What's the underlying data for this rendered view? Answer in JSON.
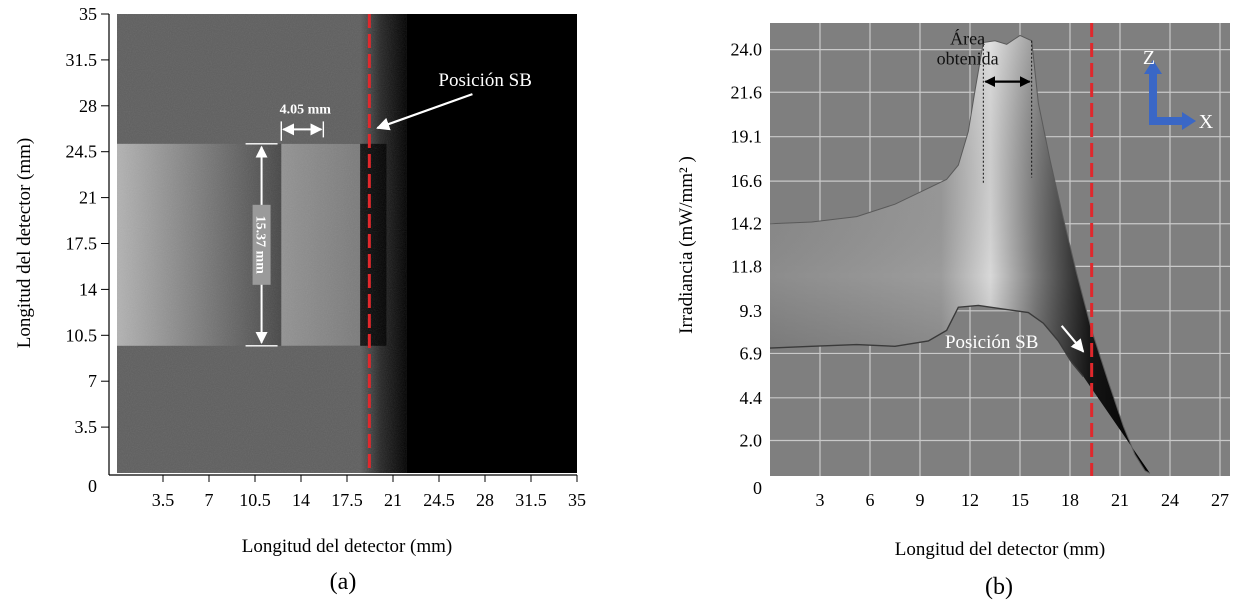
{
  "chart_data": [
    {
      "type": "heatmap",
      "panel_label": "(a)",
      "xlabel": "Longitud del detector (mm)",
      "ylabel": "Longitud del detector (mm)",
      "xlim": [
        0,
        35
      ],
      "ylim": [
        0,
        35
      ],
      "x_ticks": [
        "3.5",
        "7",
        "10.5",
        "14",
        "17.5",
        "21",
        "24.5",
        "28",
        "31.5",
        "35"
      ],
      "y_ticks": [
        "3.5",
        "7",
        "10.5",
        "14",
        "17.5",
        "21",
        "24.5",
        "28",
        "31.5",
        "35"
      ],
      "origin_label": "0",
      "bright_region": {
        "x_from": 0,
        "x_to": 20.5,
        "y_from": 9.7,
        "y_to": 25.1
      },
      "brightest_region": {
        "x_from": 12.5,
        "x_to": 18.5,
        "y_from": 9.7,
        "y_to": 25.1
      },
      "dark_region_from_x": 22,
      "sb_line_x": 19.2,
      "annotations": [
        {
          "text": "4.05 mm",
          "x_from": 12.5,
          "x_to": 15.7,
          "y": 26.2
        },
        {
          "text": "15.37 mm",
          "x": 11.0,
          "y_from": 9.7,
          "y_to": 25.1
        },
        {
          "text": "Posición SB",
          "x": 24.0,
          "y": 29.5
        }
      ]
    },
    {
      "type": "area",
      "panel_label": "(b)",
      "xlabel": "Longitud del detector (mm)",
      "ylabel": "Irradiancia (mW/mm² )",
      "xlim": [
        0,
        27.6
      ],
      "ylim": [
        0,
        25.5
      ],
      "x_ticks": [
        "3",
        "6",
        "9",
        "12",
        "15",
        "18",
        "21",
        "24",
        "27"
      ],
      "y_ticks": [
        "2.0",
        "4.4",
        "6.9",
        "9.3",
        "11.8",
        "14.2",
        "16.6",
        "19.1",
        "21.6",
        "24.0"
      ],
      "origin_label": "0",
      "grid": true,
      "sb_line_x": 19.3,
      "upper_profile": {
        "x": [
          0,
          2.5,
          5.2,
          7.5,
          9.5,
          10.6,
          11.3,
          11.9,
          12.3,
          12.8,
          13.5,
          14.2,
          15,
          15.7,
          16.1,
          16.8,
          17.6,
          18.4,
          19.3,
          20.3,
          21.2,
          21.9,
          22.5,
          22.8
        ],
        "y": [
          14.2,
          14.3,
          14.6,
          15.3,
          16.2,
          16.7,
          17.5,
          19.4,
          21.7,
          24.4,
          24.5,
          24.3,
          24.8,
          24.5,
          21.0,
          17.8,
          14.5,
          11.4,
          8.2,
          5.3,
          2.8,
          1.2,
          0.3,
          0.15
        ]
      },
      "lower_profile": {
        "x": [
          0,
          2.5,
          5.2,
          7.5,
          9.5,
          10.6,
          11.3,
          12.5,
          14,
          15.5,
          16.4,
          17.3,
          18.1,
          18.8
        ],
        "y": [
          7.2,
          7.3,
          7.4,
          7.3,
          7.6,
          8.2,
          9.5,
          9.6,
          9.4,
          9.2,
          8.6,
          7.6,
          6.4,
          5.6
        ]
      },
      "annotations": [
        {
          "text": "Área obtenida",
          "x": 13.9,
          "y": 23.3
        },
        {
          "text": "Posición SB",
          "x": 11.5,
          "y": 5.3
        }
      ],
      "axis_indicator": {
        "z_label": "Z",
        "x_label": "X",
        "color": "#3a67c6"
      }
    }
  ]
}
